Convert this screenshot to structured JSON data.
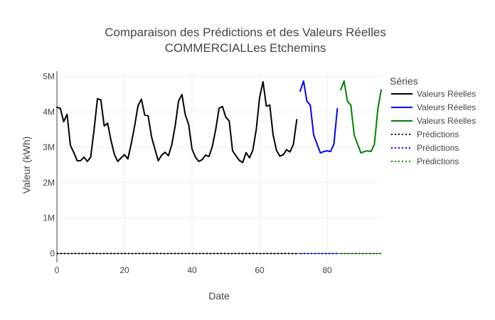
{
  "chart_data": {
    "type": "line",
    "title_line1": "Comparaison des Prédictions et des Valeurs Réelles",
    "title_line2": "COMMERCIALLes Etchemins",
    "xlabel": "Date",
    "ylabel": "Valeur (kWh)",
    "xlim": [
      0,
      96
    ],
    "ylim": [
      -250000,
      5150000
    ],
    "x_ticks": [
      {
        "value": 0,
        "label": "0"
      },
      {
        "value": 20,
        "label": "20"
      },
      {
        "value": 40,
        "label": "40"
      },
      {
        "value": 60,
        "label": "60"
      },
      {
        "value": 80,
        "label": "80"
      }
    ],
    "y_ticks": [
      {
        "value": 0,
        "label": "0"
      },
      {
        "value": 1000000,
        "label": "1M"
      },
      {
        "value": 2000000,
        "label": "2M"
      },
      {
        "value": 3000000,
        "label": "3M"
      },
      {
        "value": 4000000,
        "label": "4M"
      },
      {
        "value": 5000000,
        "label": "5M"
      }
    ],
    "grid": true,
    "legend_title": "Séries",
    "legend_position": "right",
    "series": [
      {
        "name": "Valeurs Réelles",
        "color": "#000000",
        "dash": "solid",
        "x": [
          0,
          1,
          2,
          3,
          4,
          5,
          6,
          7,
          8,
          9,
          10,
          11,
          12,
          13,
          14,
          15,
          16,
          17,
          18,
          19,
          20,
          21,
          22,
          23,
          24,
          25,
          26,
          27,
          28,
          29,
          30,
          31,
          32,
          33,
          34,
          35,
          36,
          37,
          38,
          39,
          40,
          41,
          42,
          43,
          44,
          45,
          46,
          47,
          48,
          49,
          50,
          51,
          52,
          53,
          54,
          55,
          56,
          57,
          58,
          59,
          60,
          61,
          62,
          63,
          64,
          65,
          66,
          67,
          68,
          69,
          70,
          71
        ],
        "y": [
          4130000,
          4100000,
          3720000,
          3930000,
          3050000,
          2850000,
          2620000,
          2620000,
          2720000,
          2600000,
          2720000,
          3500000,
          4370000,
          4340000,
          3600000,
          3680000,
          3200000,
          2800000,
          2600000,
          2700000,
          2790000,
          2670000,
          3100000,
          3600000,
          4170000,
          4360000,
          3910000,
          3890000,
          3300000,
          2950000,
          2620000,
          2780000,
          2860000,
          2760000,
          3070000,
          3600000,
          4300000,
          4490000,
          3920000,
          3640000,
          2950000,
          2720000,
          2600000,
          2650000,
          2780000,
          2740000,
          3020000,
          3500000,
          4100000,
          4150000,
          3850000,
          3740000,
          2900000,
          2760000,
          2630000,
          2570000,
          2850000,
          2700000,
          2920000,
          3500000,
          4400000,
          4850000,
          4160000,
          4190000,
          3350000,
          2910000,
          2750000,
          2790000,
          2930000,
          2870000,
          3080000,
          3780000
        ]
      },
      {
        "name": "Valeurs Réelles",
        "color": "#0000ff",
        "dash": "solid",
        "x": [
          72,
          73,
          74,
          75,
          76,
          77,
          78,
          79,
          80,
          81,
          82,
          83
        ],
        "y": [
          4580000,
          4870000,
          4300000,
          4190000,
          3350000,
          3090000,
          2840000,
          2880000,
          2900000,
          2880000,
          3090000,
          4090000
        ]
      },
      {
        "name": "Valeurs Réelles",
        "color": "#008000",
        "dash": "solid",
        "x": [
          84,
          85,
          86,
          87,
          88,
          89,
          90,
          91,
          92,
          93,
          94,
          95,
          96
        ],
        "y": [
          4620000,
          4870000,
          4300000,
          4190000,
          3350000,
          3090000,
          2840000,
          2880000,
          2900000,
          2880000,
          3090000,
          4090000,
          4620000
        ]
      },
      {
        "name": "Prédictions",
        "color": "#000000",
        "dash": "dot",
        "x": [
          0,
          71
        ],
        "y": [
          0,
          0
        ]
      },
      {
        "name": "Prédictions",
        "color": "#0000ff",
        "dash": "dot",
        "x": [
          72,
          83
        ],
        "y": [
          0,
          0
        ]
      },
      {
        "name": "Prédictions",
        "color": "#008000",
        "dash": "dot",
        "x": [
          84,
          96
        ],
        "y": [
          0,
          0
        ]
      }
    ]
  }
}
